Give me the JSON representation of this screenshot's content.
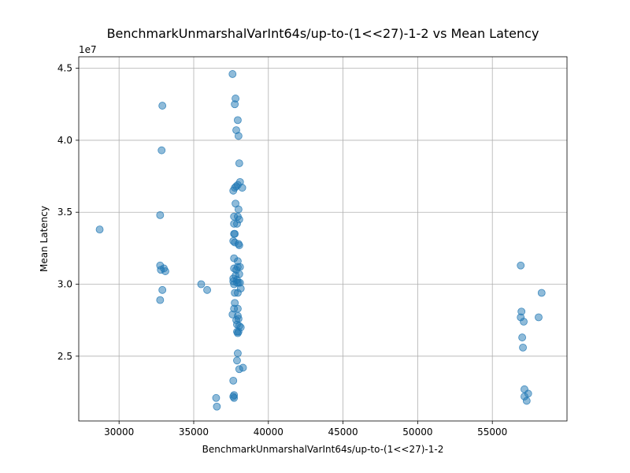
{
  "chart_data": {
    "type": "scatter",
    "title": "BenchmarkUnmarshalVarInt64s/up-to-(1<<27)-1-2 vs Mean Latency",
    "xlabel": "BenchmarkUnmarshalVarInt64s/up-to-(1<<27)-1-2",
    "ylabel": "Mean Latency",
    "y_exponent_label": "1e7",
    "xlim": [
      27300,
      60000
    ],
    "ylim": [
      20500000,
      45800000
    ],
    "xticks": [
      30000,
      35000,
      40000,
      45000,
      50000,
      55000
    ],
    "xtick_labels": [
      "30000",
      "35000",
      "40000",
      "45000",
      "50000",
      "55000"
    ],
    "yticks": [
      25000000,
      30000000,
      35000000,
      40000000,
      45000000
    ],
    "ytick_labels": [
      "2.5",
      "3.0",
      "3.5",
      "4.0",
      "4.5"
    ],
    "grid": true,
    "point_color": "#1f77b4",
    "point_opacity": 0.5,
    "points": [
      [
        28700,
        33800000
      ],
      [
        32900,
        42400000
      ],
      [
        32850,
        39300000
      ],
      [
        32750,
        34800000
      ],
      [
        32750,
        31300000
      ],
      [
        32800,
        31000000
      ],
      [
        33000,
        31100000
      ],
      [
        33100,
        30900000
      ],
      [
        32900,
        29600000
      ],
      [
        32750,
        28900000
      ],
      [
        35500,
        30000000
      ],
      [
        35900,
        29600000
      ],
      [
        36500,
        22100000
      ],
      [
        36550,
        21500000
      ],
      [
        37600,
        44600000
      ],
      [
        37800,
        42900000
      ],
      [
        37750,
        42500000
      ],
      [
        37950,
        41400000
      ],
      [
        37850,
        40700000
      ],
      [
        38000,
        40300000
      ],
      [
        38050,
        38400000
      ],
      [
        38100,
        37100000
      ],
      [
        37950,
        36900000
      ],
      [
        37850,
        36800000
      ],
      [
        37750,
        36700000
      ],
      [
        37650,
        36500000
      ],
      [
        38250,
        36700000
      ],
      [
        37800,
        35600000
      ],
      [
        38000,
        35200000
      ],
      [
        37700,
        34700000
      ],
      [
        37950,
        34700000
      ],
      [
        38050,
        34500000
      ],
      [
        37900,
        34200000
      ],
      [
        37700,
        34200000
      ],
      [
        37700,
        33500000
      ],
      [
        37750,
        33500000
      ],
      [
        37650,
        33000000
      ],
      [
        37750,
        32900000
      ],
      [
        38000,
        32800000
      ],
      [
        38050,
        32700000
      ],
      [
        37700,
        31800000
      ],
      [
        37950,
        31600000
      ],
      [
        37700,
        31100000
      ],
      [
        37950,
        31200000
      ],
      [
        38100,
        31200000
      ],
      [
        37850,
        31000000
      ],
      [
        38050,
        30700000
      ],
      [
        37800,
        30600000
      ],
      [
        37650,
        30400000
      ],
      [
        37900,
        30300000
      ],
      [
        37650,
        30200000
      ],
      [
        38000,
        30100000
      ],
      [
        38100,
        30100000
      ],
      [
        37700,
        30000000
      ],
      [
        37900,
        30100000
      ],
      [
        38150,
        29700000
      ],
      [
        37750,
        29400000
      ],
      [
        37950,
        29400000
      ],
      [
        37750,
        28700000
      ],
      [
        37700,
        28300000
      ],
      [
        37950,
        28300000
      ],
      [
        37600,
        27900000
      ],
      [
        37950,
        27800000
      ],
      [
        38000,
        27600000
      ],
      [
        37850,
        27500000
      ],
      [
        37900,
        27200000
      ],
      [
        38050,
        27100000
      ],
      [
        38150,
        27000000
      ],
      [
        37900,
        26700000
      ],
      [
        37950,
        26600000
      ],
      [
        38000,
        26700000
      ],
      [
        37950,
        25200000
      ],
      [
        37900,
        24700000
      ],
      [
        38050,
        24100000
      ],
      [
        38300,
        24200000
      ],
      [
        37650,
        23300000
      ],
      [
        37700,
        22300000
      ],
      [
        37650,
        22200000
      ],
      [
        37700,
        22100000
      ],
      [
        56900,
        31300000
      ],
      [
        58300,
        29400000
      ],
      [
        56950,
        28100000
      ],
      [
        58100,
        27700000
      ],
      [
        56900,
        27700000
      ],
      [
        57100,
        27400000
      ],
      [
        57000,
        26300000
      ],
      [
        57050,
        25600000
      ],
      [
        57150,
        22700000
      ],
      [
        57400,
        22400000
      ],
      [
        57150,
        22200000
      ],
      [
        57300,
        21900000
      ]
    ]
  }
}
